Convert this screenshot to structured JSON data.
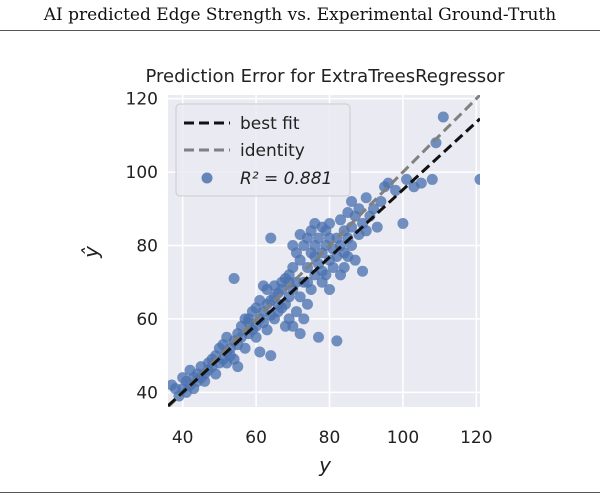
{
  "caption": "AI predicted Edge Strength vs. Experimental Ground-Truth",
  "chart_data": {
    "type": "scatter",
    "title": "Prediction Error for ExtraTreesRegressor",
    "xlabel": "y",
    "ylabel": "ŷ",
    "xlim": [
      36,
      121
    ],
    "ylim": [
      36,
      121
    ],
    "xticks": [
      40,
      60,
      80,
      100,
      120
    ],
    "yticks": [
      40,
      60,
      80,
      100,
      120
    ],
    "grid": true,
    "legend_position": "top-left",
    "legend": {
      "best_fit": "best fit",
      "identity": "identity",
      "r2_label": "R² = 0.881"
    },
    "best_fit_line": {
      "slope": 0.92,
      "intercept": 3.2
    },
    "identity_line": {
      "slope": 1,
      "intercept": 0
    },
    "colors": {
      "background": "#eaeaf2",
      "grid": "#ffffff",
      "points": "#4c72b0",
      "best_fit": "#111111",
      "identity": "#808080"
    },
    "points": [
      [
        37,
        42
      ],
      [
        38,
        41
      ],
      [
        39,
        39
      ],
      [
        40,
        41
      ],
      [
        40,
        44
      ],
      [
        41,
        40
      ],
      [
        41,
        43
      ],
      [
        42,
        42
      ],
      [
        42,
        46
      ],
      [
        43,
        41
      ],
      [
        43,
        44
      ],
      [
        44,
        43
      ],
      [
        44,
        45
      ],
      [
        45,
        44
      ],
      [
        45,
        47
      ],
      [
        46,
        45
      ],
      [
        46,
        43
      ],
      [
        47,
        48
      ],
      [
        47,
        46
      ],
      [
        48,
        47
      ],
      [
        48,
        49
      ],
      [
        49,
        45
      ],
      [
        49,
        50
      ],
      [
        50,
        48
      ],
      [
        50,
        52
      ],
      [
        51,
        49
      ],
      [
        51,
        53
      ],
      [
        52,
        51
      ],
      [
        52,
        55
      ],
      [
        52,
        48
      ],
      [
        53,
        52
      ],
      [
        53,
        50
      ],
      [
        54,
        54
      ],
      [
        54,
        49
      ],
      [
        54,
        71
      ],
      [
        55,
        47
      ],
      [
        55,
        53
      ],
      [
        55,
        56
      ],
      [
        56,
        55
      ],
      [
        56,
        58
      ],
      [
        57,
        52
      ],
      [
        57,
        60
      ],
      [
        58,
        56
      ],
      [
        58,
        59
      ],
      [
        59,
        57
      ],
      [
        59,
        62
      ],
      [
        60,
        55
      ],
      [
        60,
        58
      ],
      [
        60,
        63
      ],
      [
        61,
        51
      ],
      [
        61,
        60
      ],
      [
        61,
        65
      ],
      [
        62,
        59
      ],
      [
        62,
        62
      ],
      [
        62,
        69
      ],
      [
        63,
        57
      ],
      [
        63,
        64
      ],
      [
        63,
        68
      ],
      [
        64,
        50
      ],
      [
        64,
        61
      ],
      [
        64,
        65
      ],
      [
        64,
        82
      ],
      [
        65,
        60
      ],
      [
        65,
        66
      ],
      [
        65,
        69
      ],
      [
        66,
        62
      ],
      [
        66,
        67
      ],
      [
        67,
        63
      ],
      [
        67,
        68
      ],
      [
        67,
        70
      ],
      [
        68,
        58
      ],
      [
        68,
        64
      ],
      [
        68,
        71
      ],
      [
        69,
        60
      ],
      [
        69,
        66
      ],
      [
        69,
        72
      ],
      [
        70,
        58
      ],
      [
        70,
        68
      ],
      [
        70,
        74
      ],
      [
        70,
        80
      ],
      [
        71,
        62
      ],
      [
        71,
        70
      ],
      [
        71,
        78
      ],
      [
        72,
        56
      ],
      [
        72,
        66
      ],
      [
        72,
        76
      ],
      [
        72,
        83
      ],
      [
        73,
        60
      ],
      [
        73,
        70
      ],
      [
        73,
        80
      ],
      [
        74,
        64
      ],
      [
        74,
        74
      ],
      [
        74,
        82
      ],
      [
        75,
        68
      ],
      [
        75,
        78
      ],
      [
        75,
        84
      ],
      [
        76,
        72
      ],
      [
        76,
        80
      ],
      [
        76,
        86
      ],
      [
        77,
        55
      ],
      [
        77,
        75
      ],
      [
        77,
        82
      ],
      [
        78,
        70
      ],
      [
        78,
        78
      ],
      [
        78,
        85
      ],
      [
        79,
        72
      ],
      [
        79,
        80
      ],
      [
        79,
        84
      ],
      [
        80,
        68
      ],
      [
        80,
        76
      ],
      [
        80,
        82
      ],
      [
        80,
        86
      ],
      [
        81,
        74
      ],
      [
        81,
        79
      ],
      [
        82,
        54
      ],
      [
        82,
        77
      ],
      [
        82,
        82
      ],
      [
        83,
        72
      ],
      [
        83,
        80
      ],
      [
        83,
        87
      ],
      [
        84,
        74
      ],
      [
        84,
        78
      ],
      [
        84,
        84
      ],
      [
        85,
        77
      ],
      [
        85,
        82
      ],
      [
        85,
        89
      ],
      [
        86,
        80
      ],
      [
        86,
        85
      ],
      [
        86,
        92
      ],
      [
        87,
        76
      ],
      [
        87,
        88
      ],
      [
        88,
        83
      ],
      [
        88,
        90
      ],
      [
        89,
        73
      ],
      [
        89,
        86
      ],
      [
        90,
        84
      ],
      [
        90,
        93
      ],
      [
        91,
        88
      ],
      [
        92,
        90
      ],
      [
        93,
        85
      ],
      [
        94,
        92
      ],
      [
        95,
        96
      ],
      [
        96,
        97
      ],
      [
        98,
        95
      ],
      [
        100,
        86
      ],
      [
        101,
        98
      ],
      [
        103,
        96
      ],
      [
        105,
        97
      ],
      [
        108,
        98
      ],
      [
        109,
        108
      ],
      [
        111,
        115
      ],
      [
        121,
        98
      ],
      [
        58,
        60
      ],
      [
        66,
        64
      ],
      [
        74,
        70
      ],
      [
        78,
        73
      ],
      [
        69,
        70
      ],
      [
        76,
        77
      ]
    ]
  }
}
